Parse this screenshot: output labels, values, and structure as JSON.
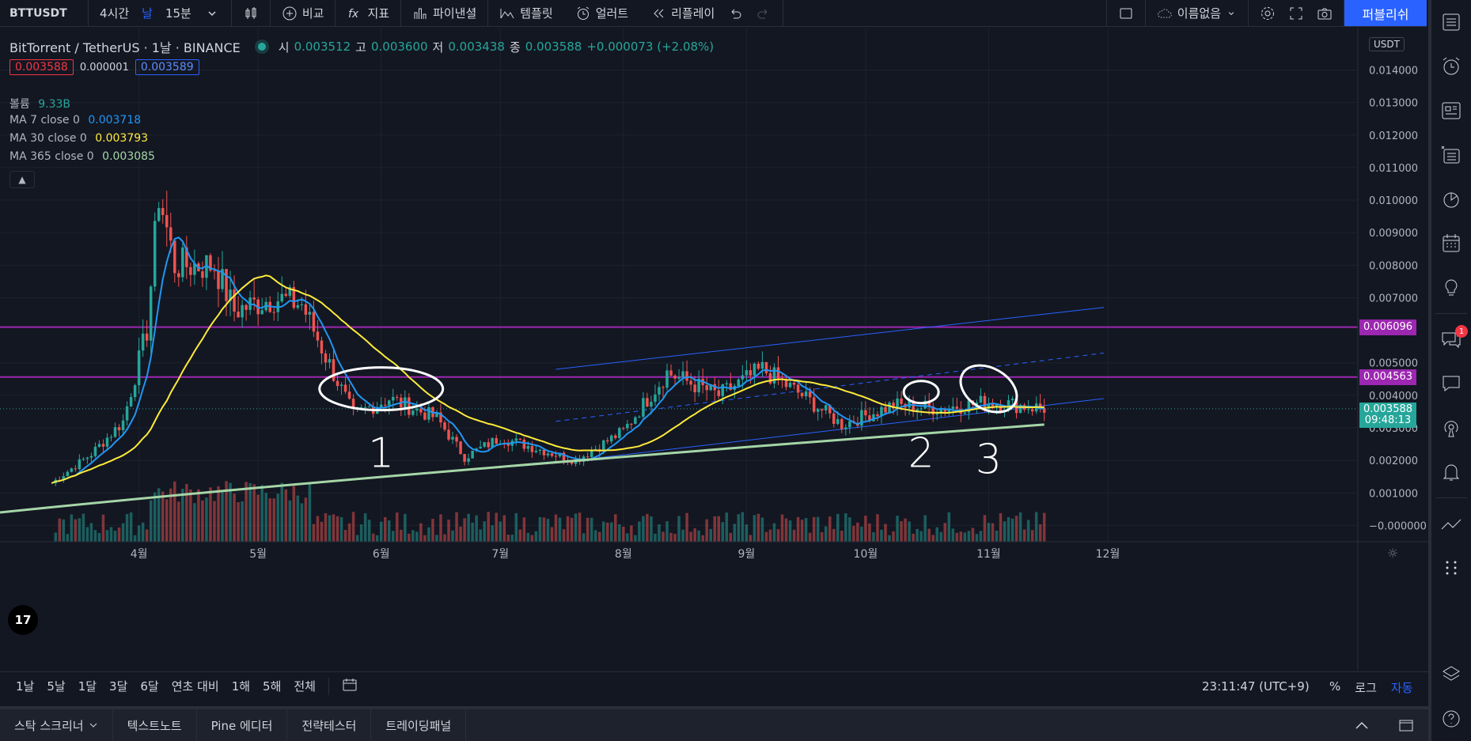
{
  "toolbar": {
    "symbol": "BTTUSDT",
    "intervals": [
      "4시간",
      "날",
      "15분"
    ],
    "active_interval": "날",
    "compare": "비교",
    "indicators": "지표",
    "financials": "파이낸셜",
    "templates": "템플릿",
    "alerts": "얼러트",
    "replay": "리플레이",
    "layout_name": "이름없음",
    "publish": "퍼블리쉬",
    "icons": [
      "chevron-down-icon",
      "candles-icon",
      "plus-circle-icon",
      "fx-icon",
      "bar-chart-icon",
      "template-icon",
      "alarm-clock-icon",
      "rewind-icon",
      "undo-icon",
      "redo-icon",
      "square-icon",
      "cloud-icon",
      "gear-icon",
      "fullscreen-icon",
      "camera-icon"
    ]
  },
  "legend": {
    "title": "BitTorrent / TetherUS · 1날 · BINANCE",
    "open_label": "시",
    "open": "0.003512",
    "high_label": "고",
    "high": "0.003600",
    "low_label": "저",
    "low": "0.003438",
    "close_label": "종",
    "close": "0.003588",
    "change": "+0.000073 (+2.08%)",
    "bid": "0.003588",
    "spread": "0.000001",
    "ask": "0.003589"
  },
  "indicators": {
    "volume": {
      "label": "볼륨",
      "value": "9.33B"
    },
    "ma7": {
      "label": "MA 7 close 0",
      "value": "0.003718",
      "color": "#2196f3"
    },
    "ma30": {
      "label": "MA 30 close 0",
      "value": "0.003793",
      "color": "#ffeb3b"
    },
    "ma365": {
      "label": "MA 365 close 0",
      "value": "0.003085",
      "color": "#a5d6a7"
    }
  },
  "chart_data": {
    "type": "candlestick",
    "currency": "USDT",
    "y_ticks": [
      "0.014000",
      "0.013000",
      "0.012000",
      "0.011000",
      "0.010000",
      "0.009000",
      "0.008000",
      "0.007000",
      "0.005000",
      "0.004000",
      "0.003000",
      "0.002000",
      "0.001000",
      "−0.000000"
    ],
    "ylim": [
      -0.0005,
      0.0153
    ],
    "x_ticks": [
      "4월",
      "5월",
      "6월",
      "7월",
      "8월",
      "9월",
      "10월",
      "11월",
      "12월"
    ],
    "horizontal_lines": [
      {
        "value": 0.006096,
        "label": "0.006096",
        "color": "#9c27b0"
      },
      {
        "value": 0.004563,
        "label": "0.004563",
        "color": "#9c27b0"
      }
    ],
    "last_price": {
      "value": 0.003588,
      "label": "0.003588",
      "countdown": "09:48:13",
      "color": "#26a69a"
    },
    "daily_close_approx": [
      {
        "date": "2021-03-10",
        "close": 0.0013
      },
      {
        "date": "2021-03-20",
        "close": 0.0022
      },
      {
        "date": "2021-03-28",
        "close": 0.0032
      },
      {
        "date": "2021-04-03",
        "close": 0.006
      },
      {
        "date": "2021-04-06",
        "close": 0.0102
      },
      {
        "date": "2021-04-10",
        "close": 0.008
      },
      {
        "date": "2021-04-20",
        "close": 0.008
      },
      {
        "date": "2021-04-25",
        "close": 0.0066
      },
      {
        "date": "2021-05-05",
        "close": 0.007
      },
      {
        "date": "2021-05-12",
        "close": 0.0068
      },
      {
        "date": "2021-05-18",
        "close": 0.0052
      },
      {
        "date": "2021-05-25",
        "close": 0.0034
      },
      {
        "date": "2021-06-03",
        "close": 0.0039
      },
      {
        "date": "2021-06-15",
        "close": 0.0033
      },
      {
        "date": "2021-06-22",
        "close": 0.0021
      },
      {
        "date": "2021-07-01",
        "close": 0.0027
      },
      {
        "date": "2021-07-20",
        "close": 0.002
      },
      {
        "date": "2021-08-01",
        "close": 0.0029
      },
      {
        "date": "2021-08-12",
        "close": 0.0047
      },
      {
        "date": "2021-08-25",
        "close": 0.004
      },
      {
        "date": "2021-09-05",
        "close": 0.0048
      },
      {
        "date": "2021-09-15",
        "close": 0.004
      },
      {
        "date": "2021-09-25",
        "close": 0.0031
      },
      {
        "date": "2021-10-08",
        "close": 0.0037
      },
      {
        "date": "2021-10-20",
        "close": 0.0036
      },
      {
        "date": "2021-11-01",
        "close": 0.0038
      },
      {
        "date": "2021-11-15",
        "close": 0.0036
      }
    ],
    "annotations": [
      "1",
      "2",
      "3"
    ]
  },
  "bottombar": {
    "ranges": [
      "1날",
      "5날",
      "1달",
      "3달",
      "6달",
      "연초 대비",
      "1해",
      "5해",
      "전체"
    ],
    "clock": "23:11:47 (UTC+9)",
    "percent": "%",
    "log": "로그",
    "auto": "자동"
  },
  "panels": [
    "스탁 스크리너",
    "텍스트노트",
    "Pine 에디터",
    "전략테스터",
    "트레이딩패널"
  ]
}
